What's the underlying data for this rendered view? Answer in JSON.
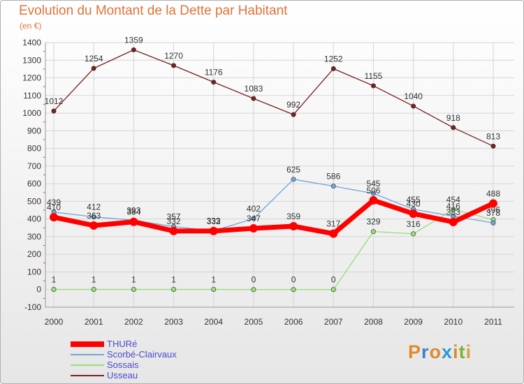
{
  "title": "Evolution du Montant de la Dette par Habitant",
  "unit": "(en €)",
  "logo": {
    "text": "Proxiti",
    "letter_colors": [
      "#e08a2c",
      "#3b7fd1",
      "#e08a2c",
      "#2a9bd6",
      "#e08a2c",
      "#7bb03a",
      "#d8a53a"
    ]
  },
  "chart_data": {
    "type": "line",
    "title": "Evolution du Montant de la Dette par Habitant",
    "ylabel": "(en €)",
    "x": [
      "2000",
      "2001",
      "2002",
      "2003",
      "2004",
      "2005",
      "2006",
      "2007",
      "2008",
      "2009",
      "2010",
      "2011"
    ],
    "ylim": [
      -100,
      1400
    ],
    "yticks": [
      "-100",
      "0",
      "100",
      "200",
      "300",
      "400",
      "500",
      "600",
      "700",
      "800",
      "900",
      "1000",
      "1100",
      "1200",
      "1300",
      "1400"
    ],
    "grid": true,
    "legend_position": "bottom-left",
    "series": [
      {
        "name": "THURé",
        "color": "#ff0000",
        "values": [
          410,
          363,
          384,
          332,
          332,
          347,
          359,
          317,
          506,
          430,
          383,
          488
        ],
        "labels": [
          "410",
          "363",
          "384",
          "332",
          "332",
          "347",
          "359",
          "317",
          "506",
          "430",
          "383",
          "488"
        ]
      },
      {
        "name": "Scorbé-Clairvaux",
        "color": "#6fa6d8",
        "values": [
          439,
          412,
          393,
          357,
          333,
          402,
          625,
          586,
          545,
          455,
          416,
          378
        ],
        "labels": [
          "439",
          "412",
          "393",
          "357",
          "333",
          "402",
          "625",
          "586",
          "545",
          "455",
          "416",
          "378"
        ]
      },
      {
        "name": "Sossais",
        "color": "#99dd77",
        "values": [
          1,
          1,
          1,
          1,
          1,
          0,
          0,
          0,
          329,
          316,
          454,
          396
        ],
        "labels": [
          "1",
          "1",
          "1",
          "1",
          "1",
          "0",
          "0",
          "0",
          "329",
          "316",
          "454",
          "396"
        ]
      },
      {
        "name": "Usseau",
        "color": "#7a2020",
        "values": [
          1012,
          1254,
          1359,
          1270,
          1176,
          1083,
          992,
          1252,
          1155,
          1040,
          918,
          813
        ],
        "labels": [
          "1012",
          "1254",
          "1359",
          "1270",
          "1176",
          "1083",
          "992",
          "1252",
          "1155",
          "1040",
          "918",
          "813"
        ]
      }
    ]
  }
}
